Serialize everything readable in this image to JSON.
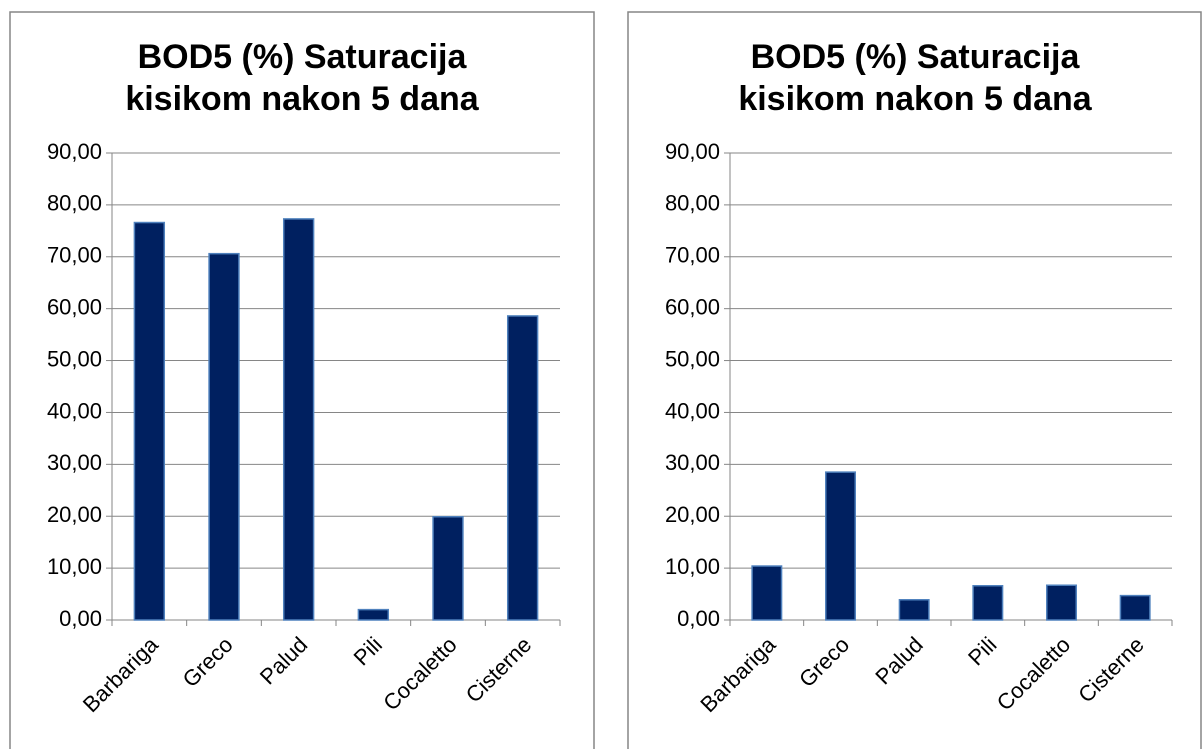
{
  "chart_data": [
    {
      "type": "bar",
      "title": "BOD5 (%) Saturacija kisikom nakon 5 dana",
      "categories": [
        "Barbariga",
        "Greco",
        "Palud",
        "Pili",
        "Cocaletto",
        "Cisterne"
      ],
      "values": [
        76.6,
        70.6,
        77.3,
        2.0,
        19.9,
        58.6
      ],
      "color": "#002060",
      "ylim": [
        0,
        90
      ],
      "yticks": [
        {
          "value": 0,
          "label": "0,00"
        },
        {
          "value": 10,
          "label": "10,00"
        },
        {
          "value": 20,
          "label": "20,00"
        },
        {
          "value": 30,
          "label": "30,00"
        },
        {
          "value": 40,
          "label": "40,00"
        },
        {
          "value": 50,
          "label": "50,00"
        },
        {
          "value": 60,
          "label": "60,00"
        },
        {
          "value": 70,
          "label": "70,00"
        },
        {
          "value": 80,
          "label": "80,00"
        },
        {
          "value": 90,
          "label": "90,00"
        }
      ],
      "grid": true
    },
    {
      "type": "bar",
      "title": "BOD5 (%) Saturacija kisikom nakon 5 dana",
      "categories": [
        "Barbariga",
        "Greco",
        "Palud",
        "Pili",
        "Cocaletto",
        "Cisterne"
      ],
      "values": [
        10.4,
        28.5,
        3.9,
        6.6,
        6.7,
        4.7
      ],
      "color": "#002060",
      "ylim": [
        0,
        90
      ],
      "yticks": [
        {
          "value": 0,
          "label": "0,00"
        },
        {
          "value": 10,
          "label": "10,00"
        },
        {
          "value": 20,
          "label": "20,00"
        },
        {
          "value": 30,
          "label": "30,00"
        },
        {
          "value": 40,
          "label": "40,00"
        },
        {
          "value": 50,
          "label": "50,00"
        },
        {
          "value": 60,
          "label": "60,00"
        },
        {
          "value": 70,
          "label": "70,00"
        },
        {
          "value": 80,
          "label": "80,00"
        },
        {
          "value": 90,
          "label": "90,00"
        }
      ],
      "grid": true
    }
  ]
}
